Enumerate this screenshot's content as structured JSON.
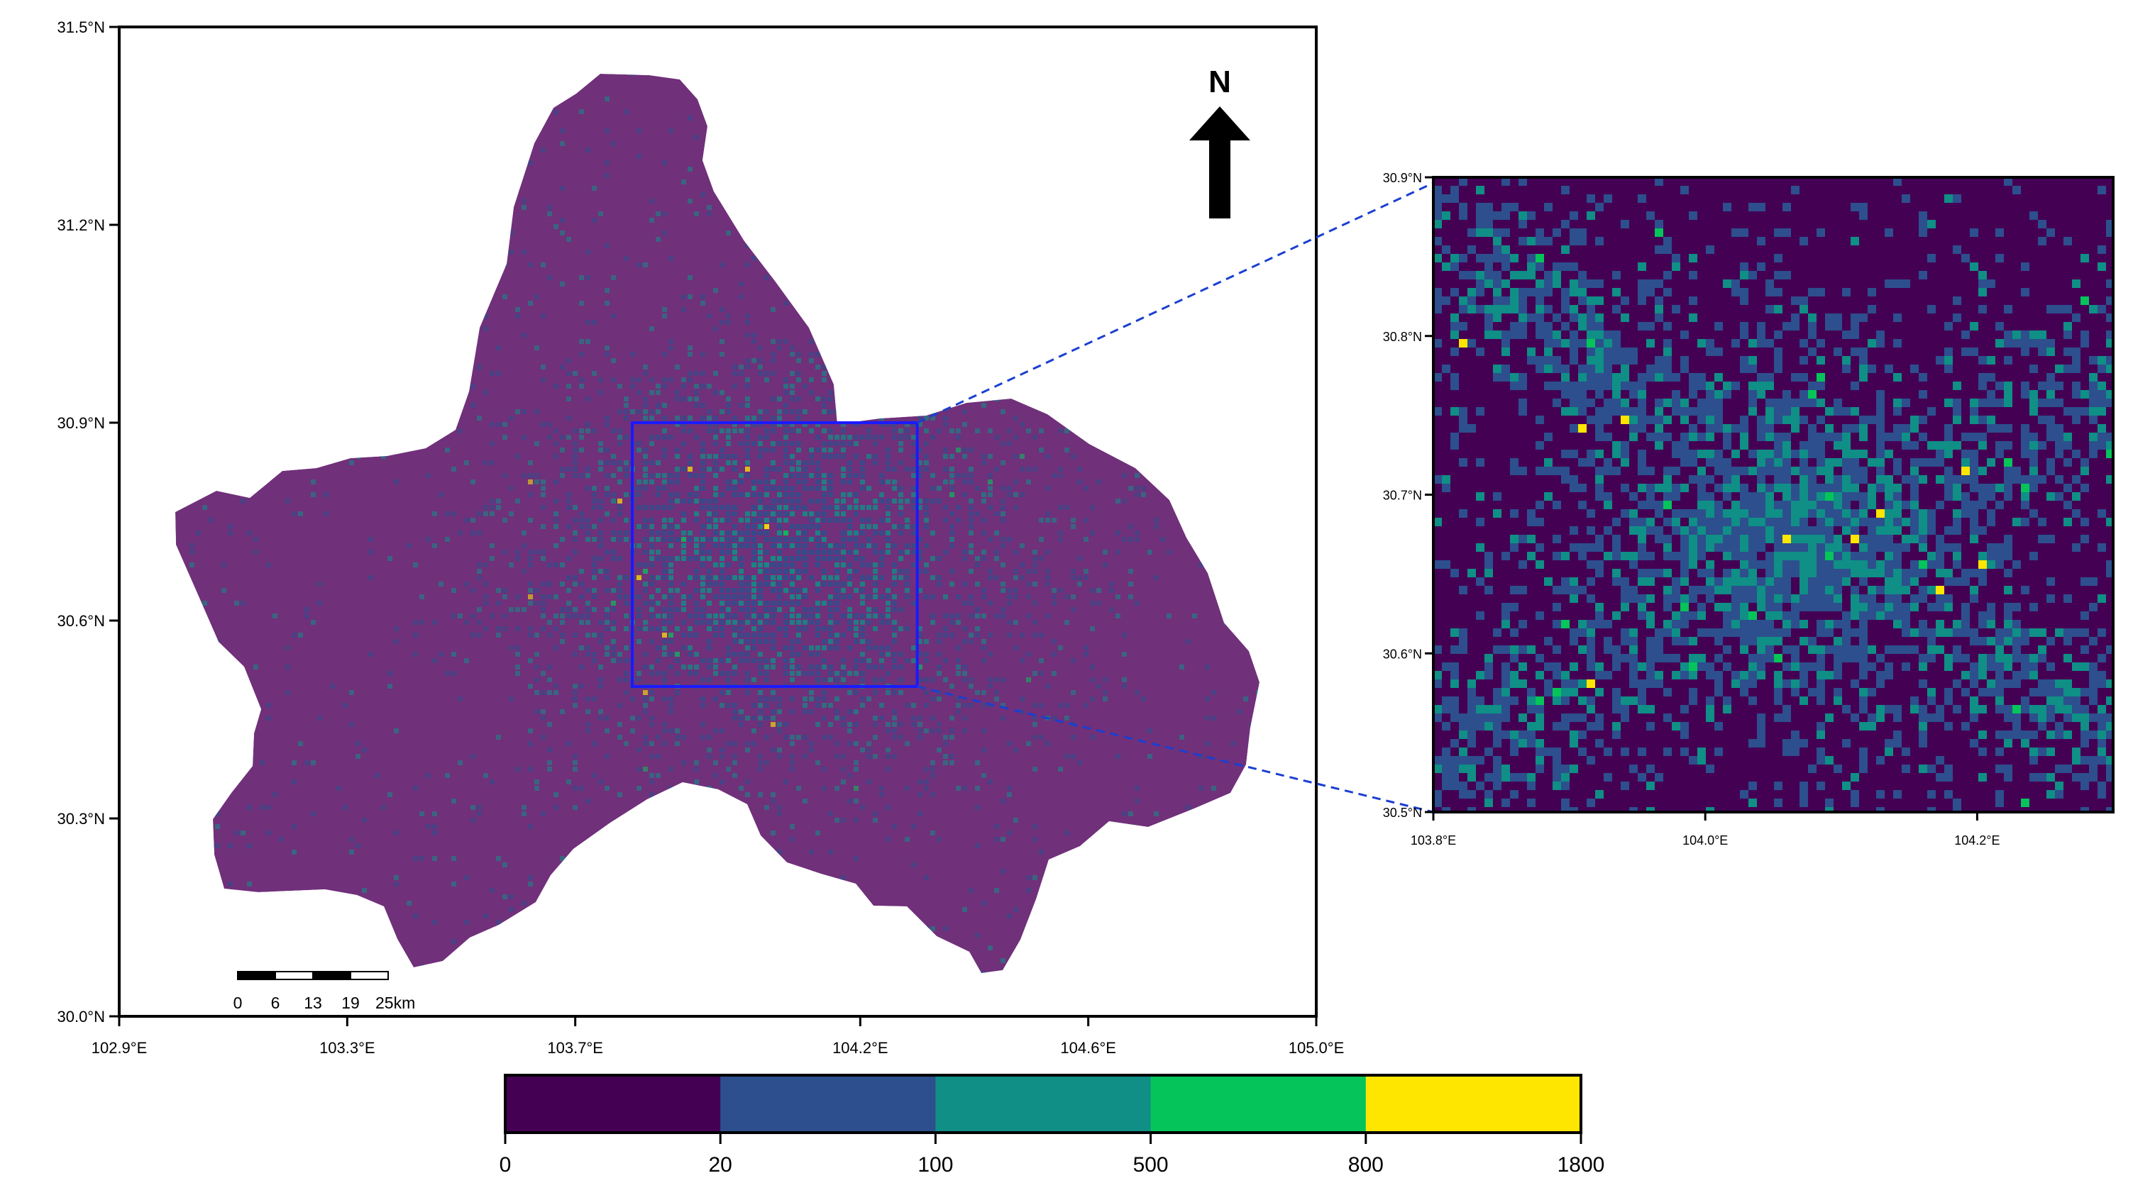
{
  "main_map": {
    "lat_range": [
      30.0,
      31.5
    ],
    "lon_range": [
      102.9,
      105.0
    ],
    "y_ticks": [
      {
        "value": 31.5,
        "label": "31.5°N"
      },
      {
        "value": 31.2,
        "label": "31.2°N"
      },
      {
        "value": 30.9,
        "label": "30.9°N"
      },
      {
        "value": 30.6,
        "label": "30.6°N"
      },
      {
        "value": 30.3,
        "label": "30.3°N"
      },
      {
        "value": 30.0,
        "label": "30.0°N"
      }
    ],
    "x_ticks": [
      {
        "value": 102.9,
        "label": "102.9°E"
      },
      {
        "value": 103.3,
        "label": "103.3°E"
      },
      {
        "value": 103.7,
        "label": "103.7°E"
      },
      {
        "value": 104.2,
        "label": "104.2°E"
      },
      {
        "value": 104.6,
        "label": "104.6°E"
      },
      {
        "value": 105.0,
        "label": "105.0°E"
      }
    ],
    "zoom_box": {
      "lon_range": [
        103.8,
        104.3
      ],
      "lat_range": [
        30.5,
        30.9
      ],
      "color": "#1a1aff"
    },
    "north_arrow": {
      "label": "N"
    },
    "scale_bar": {
      "labels": [
        "0",
        "6",
        "13",
        "19",
        "25km"
      ]
    }
  },
  "inset_map": {
    "lat_range": [
      30.5,
      30.9
    ],
    "lon_range": [
      103.8,
      104.3
    ],
    "y_ticks": [
      {
        "value": 30.9,
        "label": "30.9°N"
      },
      {
        "value": 30.8,
        "label": "30.8°N"
      },
      {
        "value": 30.7,
        "label": "30.7°N"
      },
      {
        "value": 30.6,
        "label": "30.6°N"
      },
      {
        "value": 30.5,
        "label": "30.5°N"
      }
    ],
    "x_ticks": [
      {
        "value": 103.8,
        "label": "103.8°E"
      },
      {
        "value": 104.0,
        "label": "104.0°E"
      },
      {
        "value": 104.2,
        "label": "104.2°E"
      }
    ]
  },
  "colorbar": {
    "bins": [
      {
        "from": 0,
        "to": 20,
        "color": "#440154"
      },
      {
        "from": 20,
        "to": 100,
        "color": "#2d4f8d"
      },
      {
        "from": 100,
        "to": 500,
        "color": "#0f8f86"
      },
      {
        "from": 500,
        "to": 800,
        "color": "#05c45a"
      },
      {
        "from": 800,
        "to": 1800,
        "color": "#ffe600"
      }
    ],
    "tick_labels": [
      "0",
      "20",
      "100",
      "500",
      "800",
      "1800"
    ]
  },
  "colors": {
    "main_background": "#70307a",
    "connector": "#1a3fd0"
  }
}
